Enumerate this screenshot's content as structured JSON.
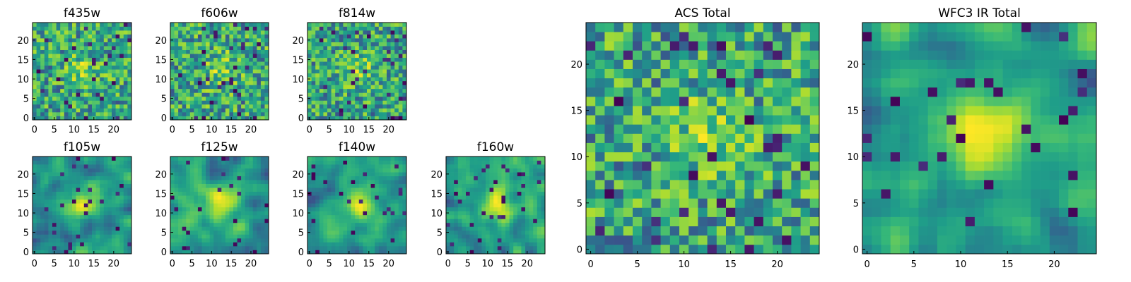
{
  "chart_data": {
    "type": "heatmap",
    "colormap": "viridis",
    "panels": [
      {
        "title": "f435w",
        "grid_size": 25,
        "xticks": [
          0,
          5,
          10,
          15,
          20
        ],
        "yticks": [
          0,
          5,
          10,
          15,
          20
        ],
        "xlim": [
          -0.5,
          24.5
        ],
        "ylim": [
          -0.5,
          24.5
        ],
        "texture": "noise",
        "seed": 11
      },
      {
        "title": "f606w",
        "grid_size": 25,
        "xticks": [
          0,
          5,
          10,
          15,
          20
        ],
        "yticks": [
          0,
          5,
          10,
          15,
          20
        ],
        "xlim": [
          -0.5,
          24.5
        ],
        "ylim": [
          -0.5,
          24.5
        ],
        "texture": "noise",
        "seed": 23
      },
      {
        "title": "f814w",
        "grid_size": 25,
        "xticks": [
          0,
          5,
          10,
          15,
          20
        ],
        "yticks": [
          0,
          5,
          10,
          15,
          20
        ],
        "xlim": [
          -0.5,
          24.5
        ],
        "ylim": [
          -0.5,
          24.5
        ],
        "texture": "noise",
        "seed": 37
      },
      {
        "title": "f105w",
        "grid_size": 25,
        "xticks": [
          0,
          5,
          10,
          15,
          20
        ],
        "yticks": [
          0,
          5,
          10,
          15,
          20
        ],
        "xlim": [
          -0.5,
          24.5
        ],
        "ylim": [
          -0.5,
          24.5
        ],
        "texture": "smooth",
        "seed": 41
      },
      {
        "title": "f125w",
        "grid_size": 25,
        "xticks": [
          0,
          5,
          10,
          15,
          20
        ],
        "yticks": [
          0,
          5,
          10,
          15,
          20
        ],
        "xlim": [
          -0.5,
          24.5
        ],
        "ylim": [
          -0.5,
          24.5
        ],
        "texture": "smooth",
        "seed": 53
      },
      {
        "title": "f140w",
        "grid_size": 25,
        "xticks": [
          0,
          5,
          10,
          15,
          20
        ],
        "yticks": [
          0,
          5,
          10,
          15,
          20
        ],
        "xlim": [
          -0.5,
          24.5
        ],
        "ylim": [
          -0.5,
          24.5
        ],
        "texture": "smooth",
        "seed": 67
      },
      {
        "title": "f160w",
        "grid_size": 25,
        "xticks": [
          0,
          5,
          10,
          15,
          20
        ],
        "yticks": [
          0,
          5,
          10,
          15,
          20
        ],
        "xlim": [
          -0.5,
          24.5
        ],
        "ylim": [
          -0.5,
          24.5
        ],
        "texture": "smooth",
        "seed": 79
      },
      {
        "title": "ACS Total",
        "grid_size": 25,
        "xticks": [
          0,
          5,
          10,
          15,
          20
        ],
        "yticks": [
          0,
          5,
          10,
          15,
          20
        ],
        "xlim": [
          -0.5,
          24.5
        ],
        "ylim": [
          -0.5,
          24.5
        ],
        "texture": "noise",
        "seed": 97
      },
      {
        "title": "WFC3 IR Total",
        "grid_size": 25,
        "xticks": [
          0,
          5,
          10,
          15,
          20
        ],
        "yticks": [
          0,
          5,
          10,
          15,
          20
        ],
        "xlim": [
          -0.5,
          24.5
        ],
        "ylim": [
          -0.5,
          24.5
        ],
        "texture": "smooth",
        "seed": 113
      }
    ]
  }
}
